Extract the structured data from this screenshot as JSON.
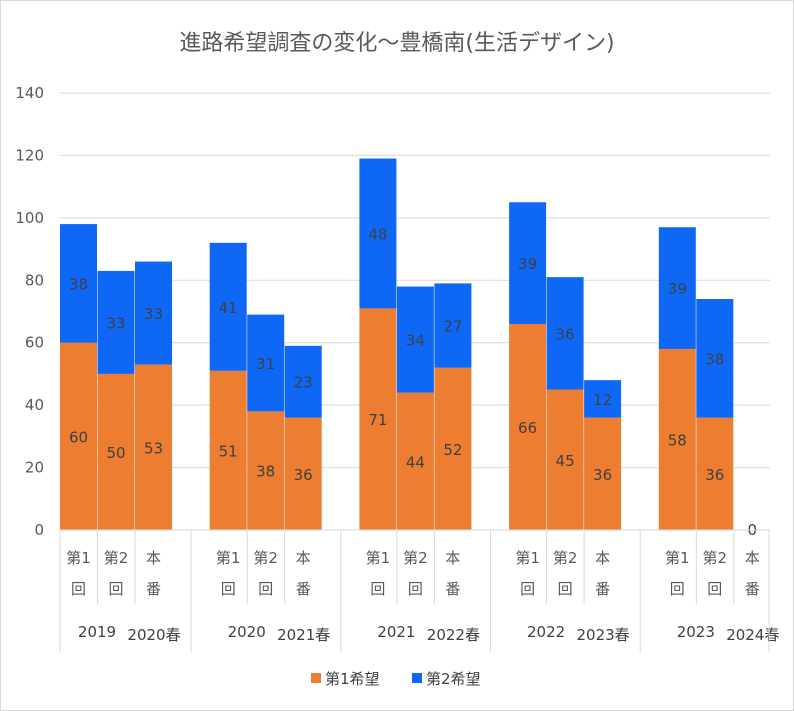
{
  "chart_data": {
    "type": "bar",
    "stacked": true,
    "title": "進路希望調査の変化〜豊橋南(生活デザイン)",
    "ylim": [
      0,
      140
    ],
    "yticks": [
      0,
      20,
      40,
      60,
      80,
      100,
      120,
      140
    ],
    "series": [
      {
        "name": "第1希望",
        "color": "#ed7d31"
      },
      {
        "name": "第2希望",
        "color": "#0f67f5"
      }
    ],
    "groups": [
      {
        "year": "2019",
        "season": "2020春",
        "bars": [
          {
            "top": [
              "第1",
              "回"
            ],
            "first": 60,
            "second": 38
          },
          {
            "top": [
              "第2",
              "回"
            ],
            "first": 50,
            "second": 33
          },
          {
            "top": [
              "本",
              "番"
            ],
            "first": 53,
            "second": 33
          }
        ]
      },
      {
        "year": "2020",
        "season": "2021春",
        "bars": [
          {
            "top": [
              "第1",
              "回"
            ],
            "first": 51,
            "second": 41
          },
          {
            "top": [
              "第2",
              "回"
            ],
            "first": 38,
            "second": 31
          },
          {
            "top": [
              "本",
              "番"
            ],
            "first": 36,
            "second": 23
          }
        ]
      },
      {
        "year": "2021",
        "season": "2022春",
        "bars": [
          {
            "top": [
              "第1",
              "回"
            ],
            "first": 71,
            "second": 48
          },
          {
            "top": [
              "第2",
              "回"
            ],
            "first": 44,
            "second": 34
          },
          {
            "top": [
              "本",
              "番"
            ],
            "first": 52,
            "second": 27
          }
        ]
      },
      {
        "year": "2022",
        "season": "2023春",
        "bars": [
          {
            "top": [
              "第1",
              "回"
            ],
            "first": 66,
            "second": 39
          },
          {
            "top": [
              "第2",
              "回"
            ],
            "first": 45,
            "second": 36
          },
          {
            "top": [
              "本",
              "番"
            ],
            "first": 36,
            "second": 12
          }
        ]
      },
      {
        "year": "2023",
        "season": "2024春",
        "bars": [
          {
            "top": [
              "第1",
              "回"
            ],
            "first": 58,
            "second": 39
          },
          {
            "top": [
              "第2",
              "回"
            ],
            "first": 36,
            "second": 38
          },
          {
            "top": [
              "本",
              "番"
            ],
            "first": 0,
            "second": 0,
            "zero_label": "0"
          }
        ]
      }
    ],
    "legend_position": "bottom"
  }
}
